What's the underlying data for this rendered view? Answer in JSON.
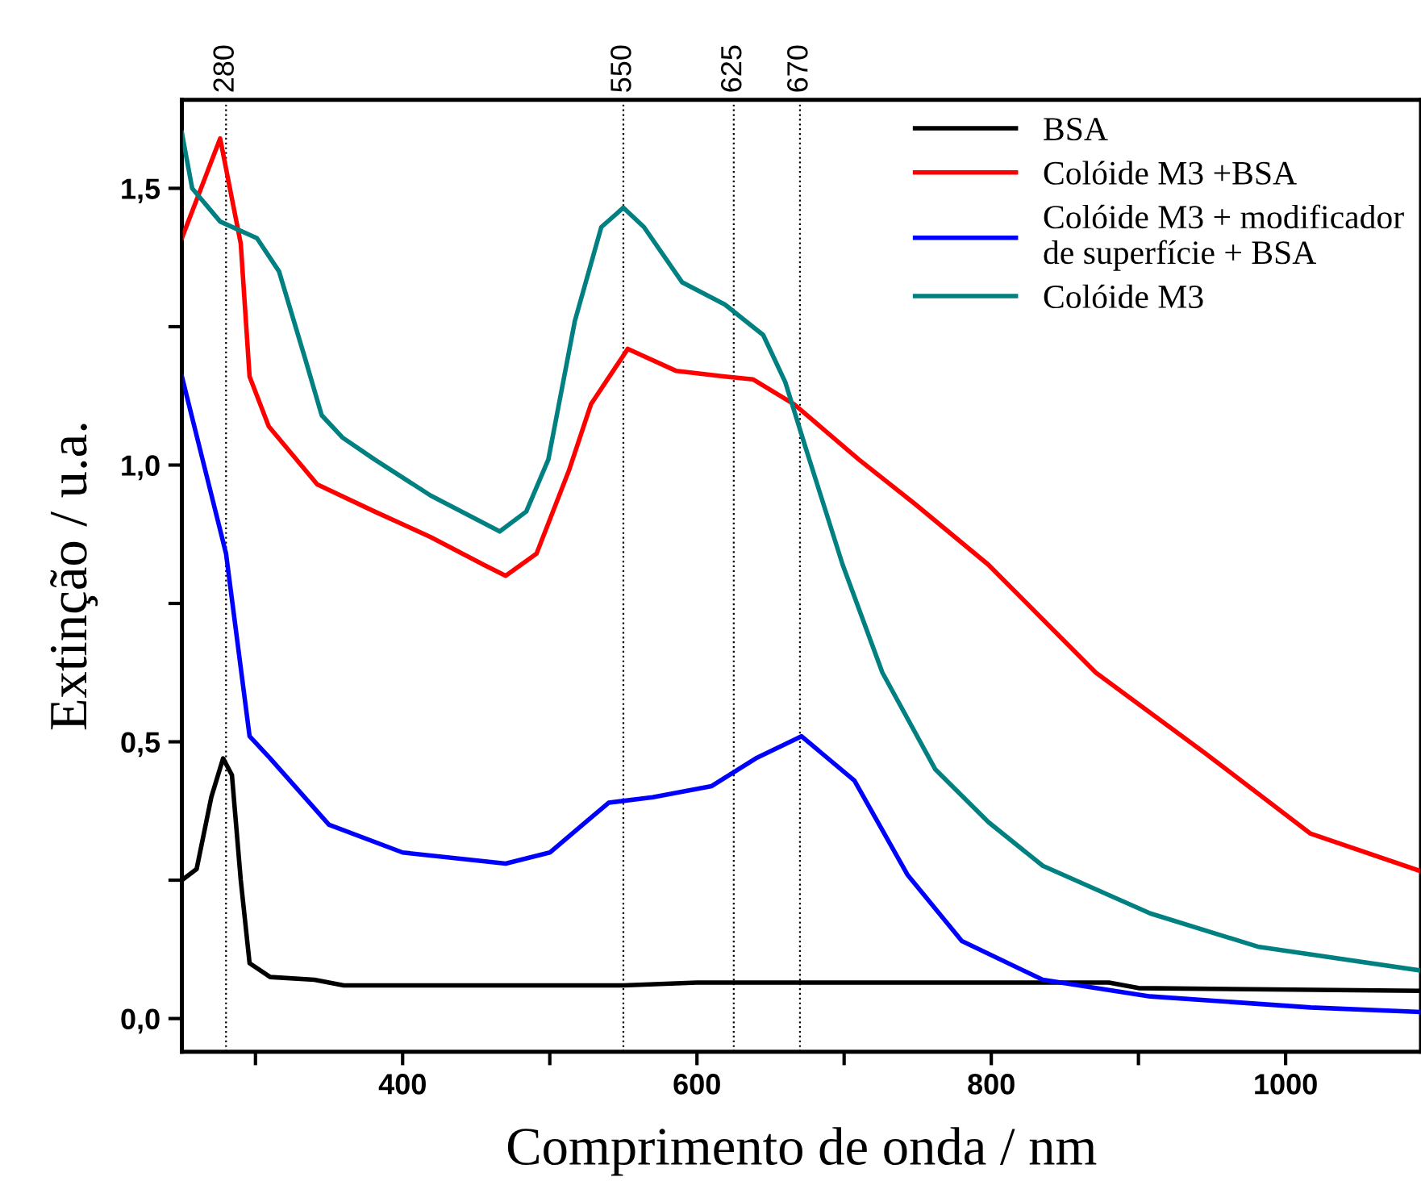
{
  "chart_data": {
    "type": "line",
    "xlabel": "Comprimento de onda / nm",
    "ylabel": "Extinção / u.a.",
    "xlim": [
      250,
      1092
    ],
    "ylim": [
      -0.06,
      1.66
    ],
    "xticks": [
      {
        "value": 300,
        "label": null
      },
      400,
      {
        "value": 500,
        "label": null
      },
      600,
      {
        "value": 700,
        "label": null
      },
      800,
      {
        "value": 900,
        "label": null
      },
      1000
    ],
    "yticks": [
      {
        "value": 0,
        "label": "0,0"
      },
      {
        "value": 0.25,
        "label": null
      },
      {
        "value": 0.5,
        "label": "0,5"
      },
      {
        "value": 0.75,
        "label": null
      },
      {
        "value": 1.0,
        "label": "1,0"
      },
      {
        "value": 1.25,
        "label": null
      },
      {
        "value": 1.5,
        "label": "1,5"
      }
    ],
    "x2lim": [
      250,
      1092
    ],
    "x2ticks": [
      280,
      550,
      625,
      670
    ],
    "ref_lines": [
      {
        "axis": "x",
        "value": 280,
        "color": "#000000",
        "line_style": "dotted"
      },
      {
        "axis": "x",
        "value": 550,
        "color": "#000000",
        "line_style": "dotted"
      },
      {
        "axis": "x",
        "value": 625,
        "color": "#000000",
        "line_style": "dotted"
      },
      {
        "axis": "x",
        "value": 670,
        "color": "#000000",
        "line_style": "dotted"
      }
    ],
    "legend": "top right",
    "grid": false,
    "marker": "none",
    "line_style": "solid",
    "series": [
      {
        "name": "BSA",
        "color": "#000000",
        "x": [
          250,
          260,
          270,
          278,
          284,
          290,
          296,
          310,
          340,
          360,
          550,
          600,
          800,
          880,
          900,
          1092
        ],
        "values": [
          0.25,
          0.27,
          0.4,
          0.47,
          0.44,
          0.25,
          0.1,
          0.075,
          0.07,
          0.06,
          0.06,
          0.065,
          0.065,
          0.065,
          0.055,
          0.05
        ]
      },
      {
        "name": "Colóide M3 +BSA",
        "color": "#ff0000",
        "x": [
          250,
          263,
          276,
          290,
          296,
          309,
          342,
          381,
          419,
          455,
          470,
          491,
          513,
          528,
          553,
          586,
          619,
          638,
          666,
          710,
          748,
          798,
          871,
          945,
          1017,
          1091
        ],
        "values": [
          1.41,
          1.5,
          1.59,
          1.4,
          1.16,
          1.07,
          0.965,
          0.916,
          0.87,
          0.82,
          0.8,
          0.84,
          0.99,
          1.11,
          1.21,
          1.17,
          1.16,
          1.155,
          1.11,
          1.01,
          0.93,
          0.82,
          0.625,
          0.48,
          0.334,
          0.267
        ]
      },
      {
        "name": "Colóide M3 + modificador\nde superfície + BSA",
        "color": "#0000ff",
        "x": [
          250,
          280,
          296,
          310,
          350,
          400,
          470,
          500,
          540,
          570,
          610,
          640,
          671,
          707,
          743,
          780,
          835,
          908,
          1017,
          1091
        ],
        "values": [
          1.16,
          0.84,
          0.51,
          0.47,
          0.35,
          0.3,
          0.28,
          0.3,
          0.39,
          0.4,
          0.42,
          0.47,
          0.51,
          0.43,
          0.26,
          0.14,
          0.07,
          0.04,
          0.02,
          0.012
        ]
      },
      {
        "name": "Colóide M3",
        "color": "#008080",
        "x": [
          250,
          257,
          276,
          301,
          316,
          334,
          345,
          359,
          381,
          419,
          466,
          484,
          499,
          517,
          535,
          550,
          564,
          590,
          619,
          645,
          660,
          674,
          699,
          726,
          762,
          798,
          835,
          908,
          981,
          1091
        ],
        "values": [
          1.6,
          1.5,
          1.44,
          1.41,
          1.35,
          1.19,
          1.09,
          1.05,
          1.01,
          0.945,
          0.88,
          0.916,
          1.01,
          1.26,
          1.43,
          1.465,
          1.43,
          1.33,
          1.29,
          1.235,
          1.15,
          1.03,
          0.82,
          0.625,
          0.45,
          0.355,
          0.276,
          0.19,
          0.13,
          0.087
        ]
      }
    ]
  }
}
